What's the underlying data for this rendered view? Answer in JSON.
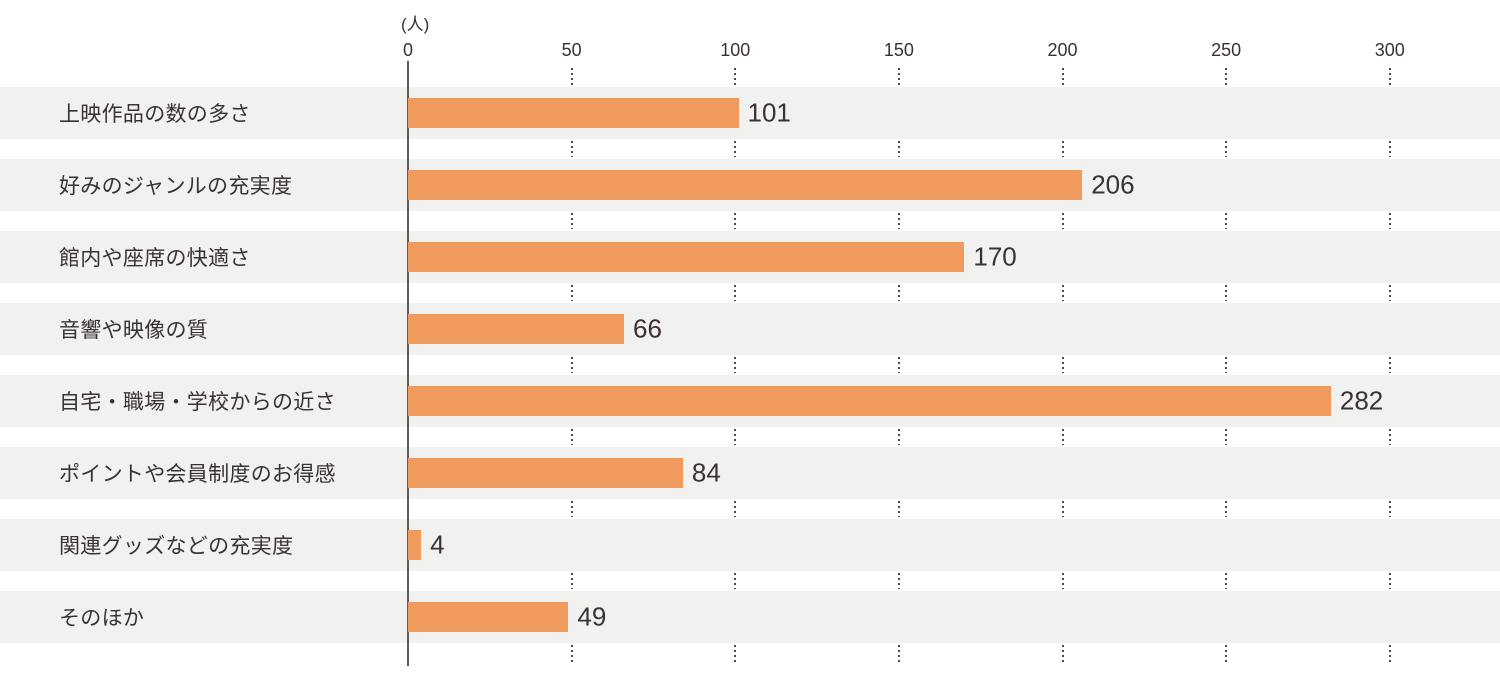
{
  "chart_data": {
    "type": "bar",
    "orientation": "horizontal",
    "title": "",
    "unit_label": "(人)",
    "categories": [
      "上映作品の数の多さ",
      "好みのジャンルの充実度",
      "館内や座席の快適さ",
      "音響や映像の質",
      "自宅・職場・学校からの近さ",
      "ポイントや会員制度のお得感",
      "関連グッズなどの充実度",
      "そのほか"
    ],
    "values": [
      101,
      206,
      170,
      66,
      282,
      84,
      4,
      49
    ],
    "x_ticks": [
      0,
      50,
      100,
      150,
      200,
      250,
      300
    ],
    "xlim": [
      0,
      334
    ],
    "legend": "none",
    "grid": "dotted vertical gridlines at each tick, visible only in gaps between row bands",
    "value_label_position": "right of bar end",
    "colors": {
      "bar": "#F09A5E",
      "row_band": "#F1F1F0",
      "text": "#3A3230",
      "axis_line": "#5E5B58",
      "gridline_dots": "#4C4A48",
      "background": "#FFFFFF"
    }
  }
}
